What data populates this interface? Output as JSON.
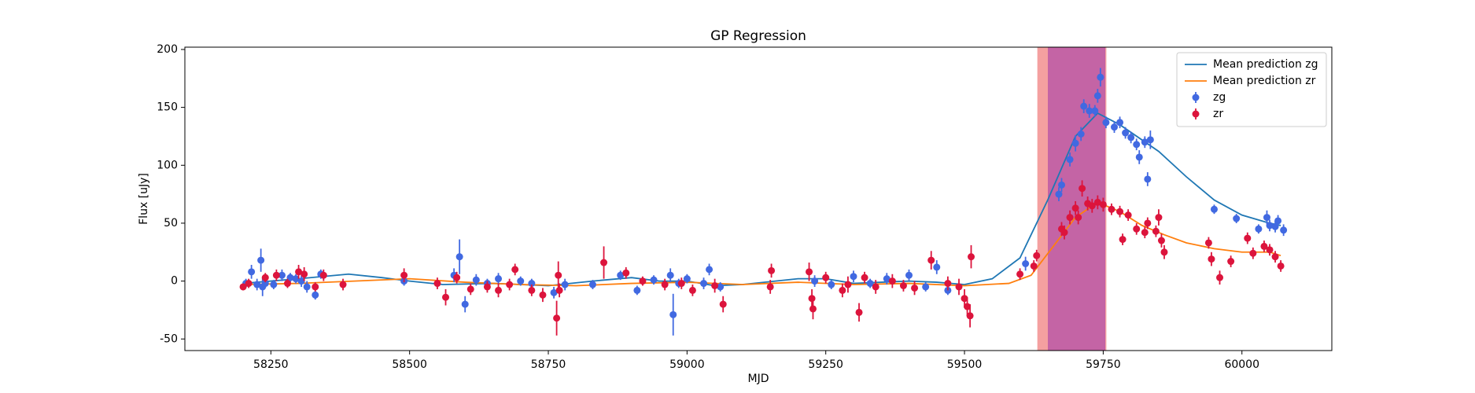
{
  "chart_data": {
    "type": "line",
    "title": "GP Regression",
    "xlabel": "MJD",
    "ylabel": "Flux [uJy]",
    "xlim": [
      58095,
      60162
    ],
    "ylim": [
      -60,
      202
    ],
    "xticks": [
      58250,
      58500,
      58750,
      59000,
      59250,
      59500,
      59750,
      60000
    ],
    "yticks": [
      -50,
      0,
      50,
      100,
      150,
      200
    ],
    "legend": "upper right",
    "spans": [
      {
        "xmin": 59632,
        "xmax": 59755,
        "color": "#f4a0a0"
      },
      {
        "xmin": 59651,
        "xmax": 59753,
        "color": "#c161a5"
      }
    ],
    "series": [
      {
        "name": "Mean prediction zg",
        "type": "line",
        "color": "#1f77b4",
        "x": [
          58200,
          58300,
          58390,
          58450,
          58500,
          58560,
          58650,
          58750,
          58830,
          58900,
          58950,
          59000,
          59050,
          59100,
          59200,
          59250,
          59300,
          59400,
          59450,
          59500,
          59550,
          59600,
          59650,
          59700,
          59740,
          59780,
          59850,
          59900,
          59950,
          60000,
          60050,
          60070
        ],
        "values": [
          -2,
          2,
          6,
          3,
          0,
          -3,
          -2,
          -4,
          0,
          3,
          0,
          0,
          -4,
          -3,
          2,
          2,
          -2,
          0,
          -1,
          -3,
          2,
          20,
          70,
          125,
          145,
          135,
          112,
          90,
          70,
          57,
          50,
          48
        ]
      },
      {
        "name": "Mean prediction zr",
        "type": "line",
        "color": "#ff7f0e",
        "x": [
          58200,
          58300,
          58400,
          58500,
          58600,
          58700,
          58800,
          58900,
          59000,
          59100,
          59200,
          59300,
          59400,
          59500,
          59580,
          59620,
          59660,
          59700,
          59740,
          59780,
          59820,
          59860,
          59900,
          59950,
          60000,
          60050,
          60070
        ],
        "values": [
          -3,
          -2,
          0,
          2,
          -1,
          -3,
          -4,
          -2,
          -1,
          -3,
          -1,
          -3,
          -2,
          -4,
          -2,
          5,
          30,
          55,
          68,
          60,
          48,
          40,
          33,
          28,
          25,
          25,
          22
        ]
      },
      {
        "name": "zg",
        "type": "errorbar",
        "color": "#4169e1",
        "x": [
          58205,
          58215,
          58225,
          58232,
          58235,
          58240,
          58255,
          58270,
          58285,
          58295,
          58305,
          58315,
          58330,
          58340,
          58490,
          58580,
          58590,
          58600,
          58620,
          58640,
          58660,
          58700,
          58720,
          58760,
          58780,
          58830,
          58880,
          58910,
          58940,
          58970,
          58975,
          58985,
          59000,
          59030,
          59040,
          59060,
          59230,
          59260,
          59300,
          59330,
          59360,
          59400,
          59430,
          59450,
          59470,
          59610,
          59670,
          59675,
          59690,
          59700,
          59710,
          59715,
          59725,
          59735,
          59740,
          59745,
          59755,
          59770,
          59780,
          59790,
          59800,
          59810,
          59815,
          59825,
          59830,
          59835,
          59950,
          59990,
          60030,
          60045,
          60050,
          60060,
          60065,
          60075
        ],
        "values": [
          -2,
          8,
          -3,
          18,
          -5,
          -2,
          -3,
          5,
          3,
          2,
          0,
          -5,
          -12,
          6,
          0,
          5,
          21,
          -20,
          1,
          -2,
          2,
          0,
          -2,
          -10,
          -3,
          -3,
          5,
          -8,
          1,
          5,
          -29,
          -2,
          2,
          -2,
          10,
          -5,
          0,
          -3,
          4,
          -2,
          2,
          5,
          -5,
          12,
          -8,
          15,
          75,
          83,
          105,
          119,
          127,
          151,
          147,
          147,
          160,
          176,
          137,
          133,
          137,
          128,
          124,
          118,
          107,
          120,
          88,
          122,
          62,
          54,
          45,
          55,
          48,
          47,
          52,
          44
        ],
        "errors": [
          4,
          6,
          5,
          10,
          8,
          4,
          4,
          5,
          4,
          4,
          5,
          5,
          4,
          4,
          4,
          6,
          15,
          7,
          5,
          4,
          5,
          4,
          4,
          5,
          5,
          4,
          4,
          4,
          4,
          6,
          18,
          4,
          4,
          5,
          5,
          4,
          5,
          4,
          5,
          4,
          5,
          5,
          4,
          6,
          4,
          6,
          6,
          6,
          6,
          7,
          6,
          6,
          6,
          5,
          6,
          8,
          5,
          5,
          5,
          5,
          5,
          5,
          6,
          5,
          6,
          8,
          4,
          4,
          4,
          6,
          5,
          5,
          5,
          5
        ]
      },
      {
        "name": "zr",
        "type": "errorbar",
        "color": "#dc143c",
        "x": [
          58200,
          58210,
          58240,
          58260,
          58280,
          58300,
          58310,
          58330,
          58345,
          58380,
          58490,
          58550,
          58565,
          58585,
          58610,
          58640,
          58660,
          58680,
          58690,
          58720,
          58740,
          58765,
          58768,
          58770,
          58850,
          58890,
          58920,
          58960,
          58990,
          59010,
          59050,
          59065,
          59150,
          59152,
          59220,
          59225,
          59227,
          59250,
          59280,
          59290,
          59310,
          59320,
          59340,
          59370,
          59390,
          59410,
          59440,
          59470,
          59490,
          59500,
          59505,
          59510,
          59512,
          59600,
          59625,
          59630,
          59675,
          59680,
          59690,
          59700,
          59705,
          59712,
          59722,
          59730,
          59740,
          59750,
          59765,
          59780,
          59785,
          59795,
          59810,
          59825,
          59830,
          59845,
          59850,
          59855,
          59860,
          59940,
          59945,
          59960,
          59980,
          60010,
          60020,
          60040,
          60050,
          60060,
          60070
        ],
        "values": [
          -5,
          -2,
          3,
          5,
          -2,
          8,
          6,
          -5,
          5,
          -3,
          5,
          -2,
          -14,
          3,
          -7,
          -5,
          -8,
          -3,
          10,
          -8,
          -12,
          -32,
          5,
          -8,
          16,
          7,
          0,
          -3,
          -2,
          -8,
          -4,
          -20,
          -5,
          9,
          8,
          -15,
          -24,
          3,
          -8,
          -3,
          -27,
          3,
          -5,
          0,
          -4,
          -6,
          18,
          -2,
          -5,
          -15,
          -22,
          -30,
          21,
          6,
          13,
          22,
          45,
          42,
          55,
          63,
          55,
          80,
          67,
          65,
          68,
          66,
          62,
          60,
          36,
          57,
          45,
          42,
          50,
          43,
          55,
          35,
          25,
          33,
          19,
          3,
          17,
          37,
          24,
          30,
          27,
          21,
          13
        ],
        "errors": [
          3,
          4,
          4,
          5,
          4,
          6,
          6,
          4,
          5,
          5,
          6,
          5,
          7,
          5,
          5,
          5,
          6,
          5,
          5,
          5,
          6,
          15,
          12,
          6,
          14,
          5,
          4,
          5,
          5,
          5,
          6,
          7,
          6,
          6,
          8,
          8,
          9,
          5,
          6,
          7,
          8,
          5,
          6,
          6,
          5,
          6,
          8,
          6,
          7,
          8,
          8,
          10,
          10,
          5,
          5,
          5,
          6,
          6,
          6,
          6,
          6,
          7,
          6,
          6,
          6,
          6,
          5,
          5,
          5,
          5,
          5,
          5,
          5,
          5,
          7,
          6,
          6,
          5,
          6,
          6,
          5,
          5,
          5,
          5,
          5,
          5,
          5
        ]
      }
    ]
  }
}
